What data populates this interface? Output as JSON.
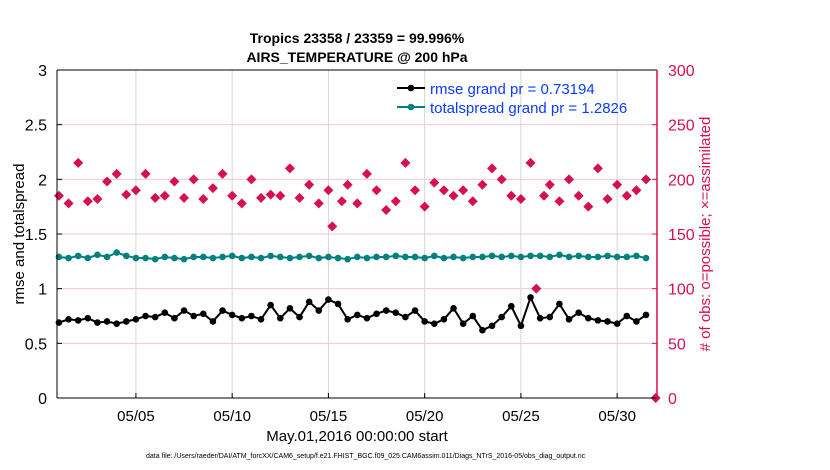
{
  "chart_data": {
    "type": "line",
    "title": [
      "Tropics 23358 / 23359 = 99.996%",
      "AIRS_TEMPERATURE @ 200 hPa"
    ],
    "xlabel": "May.01,2016 00:00:00 start",
    "ylabel_left": "rmse and totalspread",
    "ylabel_right": "# of obs: o=possible; ×=assimilated",
    "footer": "data file: /Users/raeder/DAI/ATM_forcXX/CAM6_setup/f.e21.FHIST_BGC.f09_025.CAM6assim.011/Diags_NTrS_2016-05/obs_diag_output.nc",
    "xlim_days": [
      -0.1,
      31.07
    ],
    "x_ticks": [
      {
        "day": 4,
        "label": "05/05"
      },
      {
        "day": 9,
        "label": "05/10"
      },
      {
        "day": 14,
        "label": "05/15"
      },
      {
        "day": 19,
        "label": "05/20"
      },
      {
        "day": 24,
        "label": "05/25"
      },
      {
        "day": 29,
        "label": "05/30"
      }
    ],
    "ylim_left": [
      0,
      3
    ],
    "y_ticks_left": [
      "0",
      "0.5",
      "1",
      "1.5",
      "2",
      "2.5",
      "3"
    ],
    "ylim_right": [
      0,
      300
    ],
    "y_ticks_right": [
      "0",
      "50",
      "100",
      "150",
      "200",
      "250",
      "300"
    ],
    "grid": true,
    "legend_position": "top-right",
    "x_step_days": 0.5,
    "series": [
      {
        "name": "rmse grand pr = 0.73194",
        "color": "#000000",
        "axis": "left",
        "values": [
          0.69,
          0.72,
          0.71,
          0.73,
          0.69,
          0.7,
          0.68,
          0.7,
          0.72,
          0.75,
          0.74,
          0.78,
          0.73,
          0.8,
          0.75,
          0.77,
          0.7,
          0.8,
          0.76,
          0.73,
          0.75,
          0.72,
          0.85,
          0.73,
          0.82,
          0.74,
          0.88,
          0.8,
          0.9,
          0.86,
          0.72,
          0.76,
          0.73,
          0.77,
          0.8,
          0.78,
          0.74,
          0.8,
          0.7,
          0.68,
          0.72,
          0.82,
          0.68,
          0.75,
          0.62,
          0.66,
          0.74,
          0.84,
          0.66,
          0.92,
          0.73,
          0.74,
          0.86,
          0.72,
          0.78,
          0.73,
          0.71,
          0.7,
          0.68,
          0.75,
          0.7,
          0.76
        ]
      },
      {
        "name": "totalspread grand pr = 1.2826",
        "color": "#00807f",
        "axis": "left",
        "values": [
          1.29,
          1.28,
          1.3,
          1.28,
          1.31,
          1.29,
          1.33,
          1.3,
          1.28,
          1.28,
          1.27,
          1.29,
          1.28,
          1.27,
          1.29,
          1.29,
          1.28,
          1.29,
          1.3,
          1.28,
          1.29,
          1.28,
          1.3,
          1.29,
          1.28,
          1.29,
          1.3,
          1.28,
          1.29,
          1.28,
          1.27,
          1.29,
          1.28,
          1.29,
          1.29,
          1.3,
          1.29,
          1.29,
          1.28,
          1.3,
          1.28,
          1.29,
          1.28,
          1.29,
          1.29,
          1.3,
          1.29,
          1.3,
          1.29,
          1.3,
          1.3,
          1.29,
          1.31,
          1.29,
          1.3,
          1.29,
          1.29,
          1.3,
          1.29,
          1.29,
          1.3,
          1.28
        ]
      }
    ],
    "obs": {
      "name": "# of obs",
      "color": "#d6104f",
      "axis": "right",
      "points": [
        [
          0,
          185
        ],
        [
          0.5,
          178
        ],
        [
          1,
          215
        ],
        [
          1.5,
          180
        ],
        [
          2,
          182
        ],
        [
          2.5,
          198
        ],
        [
          3,
          205
        ],
        [
          3.5,
          186
        ],
        [
          4,
          190
        ],
        [
          4.5,
          205
        ],
        [
          5,
          183
        ],
        [
          5.5,
          185
        ],
        [
          6,
          198
        ],
        [
          6.5,
          183
        ],
        [
          7,
          200
        ],
        [
          7.5,
          182
        ],
        [
          8,
          192
        ],
        [
          8.5,
          205
        ],
        [
          9,
          185
        ],
        [
          9.5,
          178
        ],
        [
          10,
          200
        ],
        [
          10.5,
          183
        ],
        [
          11,
          186
        ],
        [
          11.5,
          185
        ],
        [
          12,
          210
        ],
        [
          12.5,
          183
        ],
        [
          13,
          195
        ],
        [
          13.5,
          178
        ],
        [
          14,
          190
        ],
        [
          14.2,
          157
        ],
        [
          14.7,
          180
        ],
        [
          15,
          195
        ],
        [
          15.5,
          178
        ],
        [
          16,
          205
        ],
        [
          16.5,
          190
        ],
        [
          17,
          172
        ],
        [
          17.5,
          180
        ],
        [
          18,
          215
        ],
        [
          18.5,
          190
        ],
        [
          19,
          175
        ],
        [
          19.5,
          197
        ],
        [
          20,
          190
        ],
        [
          20.5,
          185
        ],
        [
          21,
          190
        ],
        [
          21.5,
          180
        ],
        [
          22,
          195
        ],
        [
          22.5,
          210
        ],
        [
          23,
          200
        ],
        [
          23.5,
          185
        ],
        [
          24,
          182
        ],
        [
          24.5,
          215
        ],
        [
          24.8,
          100
        ],
        [
          25.2,
          185
        ],
        [
          25.5,
          195
        ],
        [
          26,
          180
        ],
        [
          26.5,
          200
        ],
        [
          27,
          185
        ],
        [
          27.5,
          175
        ],
        [
          28,
          210
        ],
        [
          28.5,
          182
        ],
        [
          29,
          195
        ],
        [
          29.5,
          185
        ],
        [
          30,
          190
        ],
        [
          30.5,
          200
        ],
        [
          31,
          0
        ]
      ]
    },
    "legend_text_color": "#0a3cff",
    "right_axis_color": "#d6104f"
  }
}
